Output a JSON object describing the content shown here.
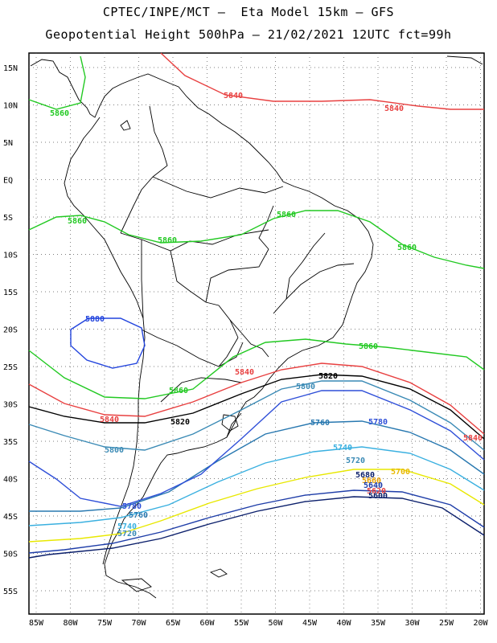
{
  "title": {
    "line1": "CPTEC/INPE/MCT –  Eta Model 15km – GFS",
    "line2": "Geopotential Height 500hPa – 21/02/2021 12UTC fct=99h"
  },
  "axes": {
    "lat_labels": [
      "15N",
      "10N",
      "5N",
      "EQ",
      "5S",
      "10S",
      "15S",
      "20S",
      "25S",
      "30S",
      "35S",
      "40S",
      "45S",
      "50S",
      "55S"
    ],
    "lon_labels": [
      "85W",
      "80W",
      "75W",
      "70W",
      "65W",
      "60W",
      "55W",
      "50W",
      "45W",
      "40W",
      "35W",
      "30W",
      "25W",
      "20W"
    ]
  },
  "colors": {
    "c5680": "#0b1f6b",
    "c5700": "#1e3da8",
    "c5720": "#e8e800",
    "c5740": "#3ab0e0",
    "c5760": "#2878b0",
    "c5780": "#2f4fd8",
    "c5800": "#3a8ab5",
    "c5820": "#000000",
    "c5840": "#e84040",
    "c5860": "#22c922",
    "c5880": "#2244dd",
    "grid": "#555555",
    "coast": "#000000"
  },
  "contour_labels": {
    "c5680": "5680",
    "c5700": "5700",
    "c5720": "5720",
    "c5740": "5740",
    "c5760": "5760",
    "c5780": "5780",
    "c5800": "5800",
    "c5820": "5820",
    "c5840": "5840",
    "c5860": "5860",
    "c5880": "5880"
  }
}
